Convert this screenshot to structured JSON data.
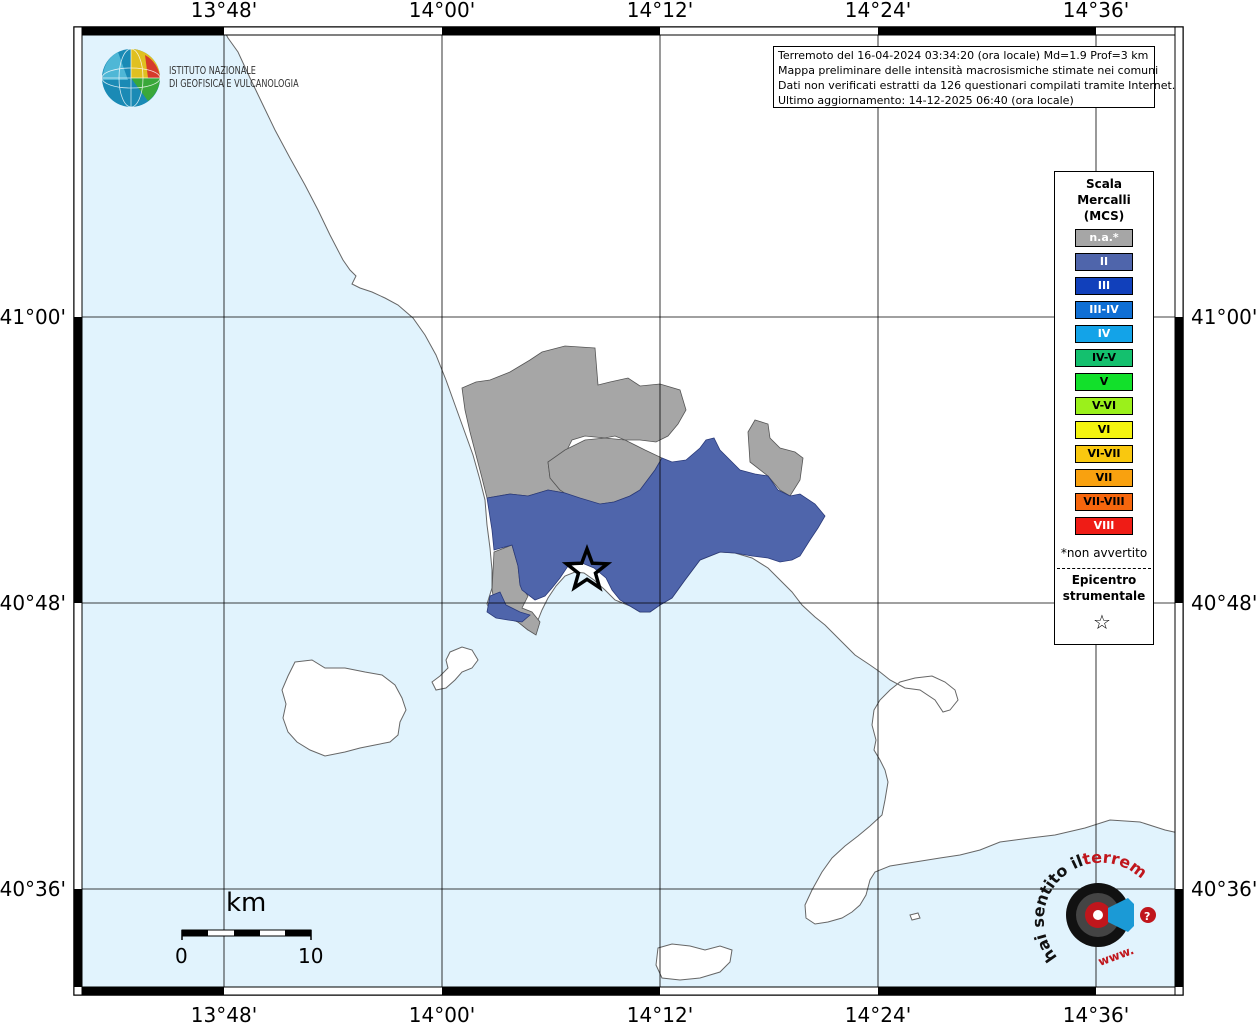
{
  "map": {
    "lon_ticks": [
      "13°48'",
      "14°00'",
      "14°12'",
      "14°24'",
      "14°36'"
    ],
    "lat_ticks": [
      "41°00'",
      "40°48'",
      "40°36'"
    ],
    "sea_color": "#e1f3fd",
    "land_color": "#ffffff",
    "intensity_colors": {
      "na": "#a6a6a6",
      "II": "#4f65ab"
    },
    "epicenter": {
      "lat": 40.82,
      "lon": 14.13
    }
  },
  "header": {
    "logo_line1": "ISTITUTO NAZIONALE",
    "logo_line2": "DI GEOFISICA E VULCANOLOGIA"
  },
  "info": {
    "line1": "Terremoto del 16-04-2024 03:34:20 (ora locale) Md=1.9 Prof=3 km",
    "line2": "Mappa preliminare delle intensità macrosismiche stimate nei comuni",
    "line3": "Dati non verificati estratti da 126 questionari compilati tramite Internet.",
    "line4": "Ultimo aggiornamento: 14-12-2025 06:40 (ora locale)"
  },
  "legend": {
    "title": "Scala Mercalli (MCS)",
    "items": [
      {
        "label": "n.a.*",
        "color": "#a6a6a6",
        "text_color": "#ffffff"
      },
      {
        "label": "II",
        "color": "#4f65ab",
        "text_color": "#ffffff"
      },
      {
        "label": "III",
        "color": "#1140bb",
        "text_color": "#ffffff"
      },
      {
        "label": "III-IV",
        "color": "#0f6fd4",
        "text_color": "#ffffff"
      },
      {
        "label": "IV",
        "color": "#13a3e8",
        "text_color": "#ffffff"
      },
      {
        "label": "IV-V",
        "color": "#14c06e",
        "text_color": "#000000"
      },
      {
        "label": "V",
        "color": "#12e02b",
        "text_color": "#000000"
      },
      {
        "label": "V-VI",
        "color": "#9bf01b",
        "text_color": "#000000"
      },
      {
        "label": "VI",
        "color": "#f4f40f",
        "text_color": "#000000"
      },
      {
        "label": "VI-VII",
        "color": "#f9c80f",
        "text_color": "#000000"
      },
      {
        "label": "VII",
        "color": "#f9a10f",
        "text_color": "#000000"
      },
      {
        "label": "VII-VIII",
        "color": "#f6660d",
        "text_color": "#000000"
      },
      {
        "label": "VIII",
        "color": "#ef1c16",
        "text_color": "#ffffff"
      }
    ],
    "na_note": "*non avvertito",
    "epicenter_label": "Epicentro strumentale",
    "epicenter_symbol": "☆"
  },
  "scale_bar": {
    "unit": "km",
    "min": "0",
    "max": "10"
  },
  "hsit_logo": {
    "text_black": "hai sentito il",
    "text_red": "terremoto.it",
    "prefix": "www."
  }
}
